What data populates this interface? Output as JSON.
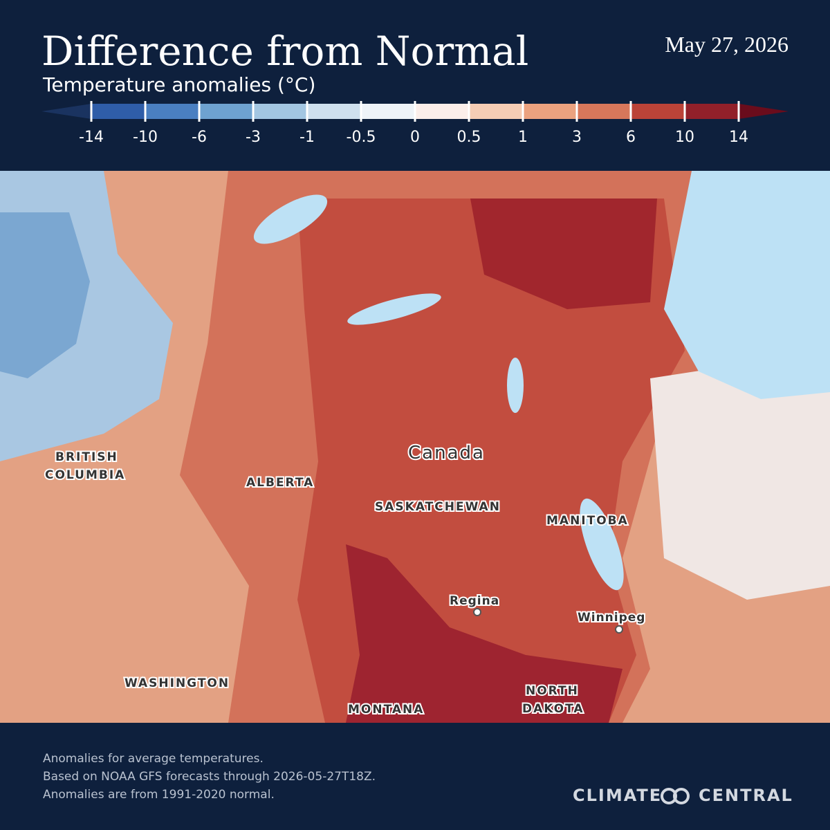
{
  "header": {
    "title": "Difference from Normal",
    "date": "May 27, 2026",
    "subtitle": "Temperature anomalies (°C)"
  },
  "legend": {
    "ticks": [
      -14,
      -10,
      -6,
      -3,
      -1,
      -0.5,
      0,
      0.5,
      1,
      3,
      6,
      10,
      14
    ],
    "colors": [
      "#1a3360",
      "#2f5da8",
      "#4a7fc1",
      "#6ea2d0",
      "#a3c6e2",
      "#cfe0ee",
      "#eef3f8",
      "#fbeeea",
      "#f5cdb5",
      "#eba27f",
      "#d7775b",
      "#bb4338",
      "#92202a",
      "#6a0c1c"
    ]
  },
  "map": {
    "labels": {
      "bc_1": "BRITISH",
      "bc_2": "COLUMBIA",
      "alberta": "ALBERTA",
      "canada": "Canada",
      "saskatchewan": "SASKATCHEWAN",
      "manitoba": "MANITOBA",
      "regina": "Regina",
      "winnipeg": "Winnipeg",
      "washington": "WASHINGTON",
      "montana": "MONTANA",
      "nd_1": "NORTH",
      "nd_2": "DAKOTA"
    }
  },
  "footer": {
    "notes": [
      "Anomalies for average temperatures.",
      "Based on NOAA GFS forecasts through 2026-05-27T18Z.",
      "Anomalies are from 1991-2020 normal."
    ],
    "logo_left": "CLIMATE",
    "logo_right": "CENTRAL"
  }
}
